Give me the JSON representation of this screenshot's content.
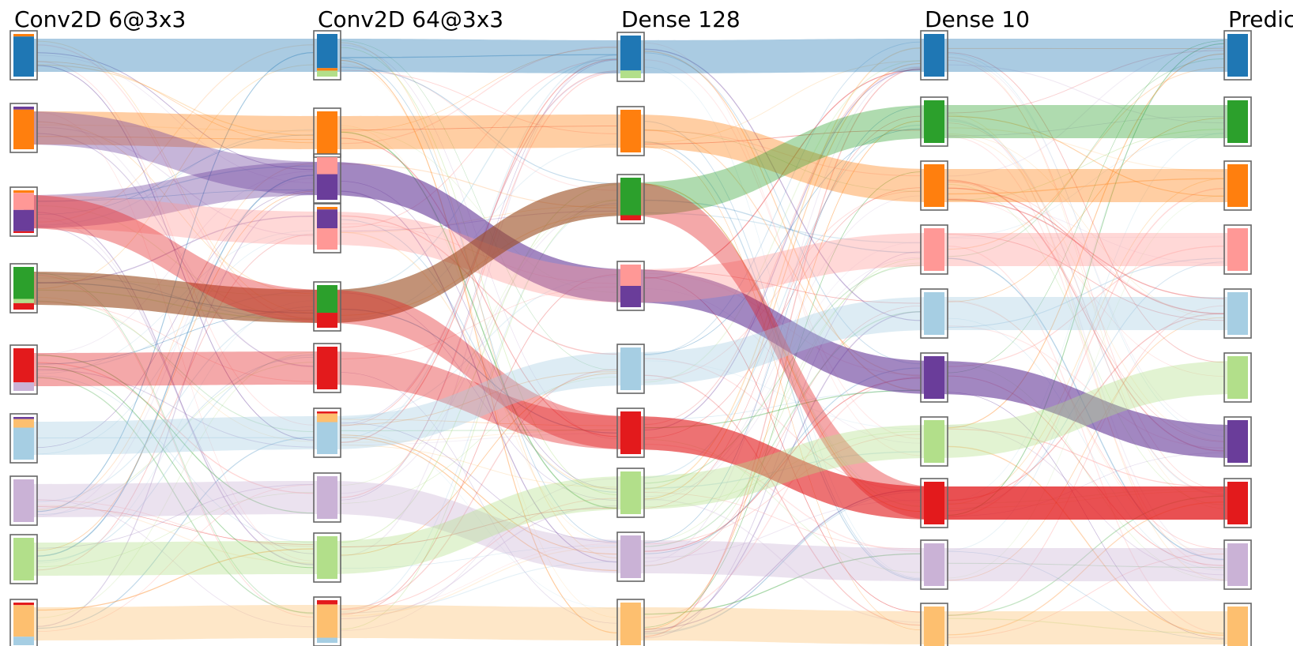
{
  "columns": [
    {
      "label": "Conv2D 6@3x3"
    },
    {
      "label": "Conv2D 64@3x3"
    },
    {
      "label": "Dense 128"
    },
    {
      "label": "Dense 10"
    },
    {
      "label": "Predic"
    }
  ],
  "classes": [
    {
      "name": "c0",
      "color": "#1f77b4",
      "light": "#aecde6"
    },
    {
      "name": "c1",
      "color": "#ff7f0e",
      "light": "#ffcc99"
    },
    {
      "name": "c2",
      "color": "#6a3d9a",
      "light": "#c5b0d5"
    },
    {
      "name": "c3",
      "color": "#ff9896",
      "light": "#fcd3d3"
    },
    {
      "name": "c4",
      "color": "#2ca02c",
      "light": "#b0dcab"
    },
    {
      "name": "c5",
      "color": "#e31a1c",
      "light": "#f4a7a8"
    },
    {
      "name": "c6",
      "color": "#a6cee3",
      "light": "#d8e8f2"
    },
    {
      "name": "c7",
      "color": "#cab2d6",
      "light": "#e7dfee"
    },
    {
      "name": "c8",
      "color": "#b2df8a",
      "light": "#dff0d0"
    },
    {
      "name": "c9",
      "color": "#fdbf6f",
      "light": "#fde3c2"
    }
  ],
  "layers": [
    {
      "nodes": [
        {
          "segments": [
            [
              "c1",
              0.06
            ],
            [
              "c0",
              0.94
            ]
          ]
        },
        {
          "segments": [
            [
              "c2",
              0.07
            ],
            [
              "c1",
              0.93
            ]
          ]
        },
        {
          "segments": [
            [
              "c1",
              0.06
            ],
            [
              "c3",
              0.4
            ],
            [
              "c2",
              0.5
            ],
            [
              "c5",
              0.04
            ]
          ]
        },
        {
          "segments": [
            [
              "c4",
              0.75
            ],
            [
              "c8",
              0.1
            ],
            [
              "c5",
              0.15
            ]
          ]
        },
        {
          "segments": [
            [
              "c5",
              0.8
            ],
            [
              "c7",
              0.2
            ]
          ]
        },
        {
          "segments": [
            [
              "c2",
              0.05
            ],
            [
              "c9",
              0.2
            ],
            [
              "c6",
              0.75
            ]
          ]
        },
        {
          "segments": [
            [
              "c7",
              1.0
            ]
          ]
        },
        {
          "segments": [
            [
              "c8",
              1.0
            ]
          ]
        },
        {
          "segments": [
            [
              "c5",
              0.06
            ],
            [
              "c9",
              0.74
            ],
            [
              "c6",
              0.2
            ]
          ]
        }
      ]
    },
    {
      "nodes": [
        {
          "segments": [
            [
              "c0",
              0.8
            ],
            [
              "c1",
              0.06
            ],
            [
              "c8",
              0.14
            ]
          ]
        },
        {
          "segments": [
            [
              "c1",
              1.0
            ]
          ]
        },
        {
          "segments": [
            [
              "c3",
              0.4
            ],
            [
              "c2",
              0.6
            ]
          ]
        },
        {
          "segments": [
            [
              "c1",
              0.06
            ],
            [
              "c2",
              0.44
            ],
            [
              "c3",
              0.5
            ]
          ]
        },
        {
          "segments": [
            [
              "c4",
              0.65
            ],
            [
              "c5",
              0.35
            ]
          ]
        },
        {
          "segments": [
            [
              "c5",
              1.0
            ]
          ]
        },
        {
          "segments": [
            [
              "c5",
              0.05
            ],
            [
              "c9",
              0.2
            ],
            [
              "c6",
              0.75
            ]
          ]
        },
        {
          "segments": [
            [
              "c7",
              1.0
            ]
          ]
        },
        {
          "segments": [
            [
              "c8",
              1.0
            ]
          ]
        },
        {
          "segments": [
            [
              "c5",
              0.1
            ],
            [
              "c9",
              0.78
            ],
            [
              "c6",
              0.12
            ]
          ]
        }
      ]
    },
    {
      "nodes": [
        {
          "segments": [
            [
              "c0",
              0.82
            ],
            [
              "c8",
              0.18
            ]
          ]
        },
        {
          "segments": [
            [
              "c1",
              1.0
            ]
          ]
        },
        {
          "segments": [
            [
              "c4",
              0.88
            ],
            [
              "c5",
              0.12
            ]
          ]
        },
        {
          "segments": [
            [
              "c3",
              0.5
            ],
            [
              "c2",
              0.5
            ]
          ]
        },
        {
          "segments": [
            [
              "c6",
              1.0
            ]
          ]
        },
        {
          "segments": [
            [
              "c5",
              1.0
            ]
          ]
        },
        {
          "segments": [
            [
              "c8",
              1.0
            ]
          ]
        },
        {
          "segments": [
            [
              "c7",
              1.0
            ]
          ]
        },
        {
          "segments": [
            [
              "c9",
              1.0
            ]
          ]
        }
      ]
    },
    {
      "nodes": [
        {
          "segments": [
            [
              "c0",
              1.0
            ]
          ]
        },
        {
          "segments": [
            [
              "c4",
              1.0
            ]
          ]
        },
        {
          "segments": [
            [
              "c1",
              1.0
            ]
          ]
        },
        {
          "segments": [
            [
              "c3",
              1.0
            ]
          ]
        },
        {
          "segments": [
            [
              "c6",
              1.0
            ]
          ]
        },
        {
          "segments": [
            [
              "c2",
              1.0
            ]
          ]
        },
        {
          "segments": [
            [
              "c8",
              1.0
            ]
          ]
        },
        {
          "segments": [
            [
              "c5",
              1.0
            ]
          ]
        },
        {
          "segments": [
            [
              "c7",
              1.0
            ]
          ]
        },
        {
          "segments": [
            [
              "c9",
              1.0
            ]
          ]
        }
      ]
    },
    {
      "nodes": [
        {
          "segments": [
            [
              "c0",
              1.0
            ]
          ]
        },
        {
          "segments": [
            [
              "c4",
              1.0
            ]
          ]
        },
        {
          "segments": [
            [
              "c1",
              1.0
            ]
          ]
        },
        {
          "segments": [
            [
              "c3",
              1.0
            ]
          ]
        },
        {
          "segments": [
            [
              "c6",
              1.0
            ]
          ]
        },
        {
          "segments": [
            [
              "c8",
              1.0
            ]
          ]
        },
        {
          "segments": [
            [
              "c2",
              1.0
            ]
          ]
        },
        {
          "segments": [
            [
              "c5",
              1.0
            ]
          ]
        },
        {
          "segments": [
            [
              "c7",
              1.0
            ]
          ]
        },
        {
          "segments": [
            [
              "c9",
              1.0
            ]
          ]
        }
      ]
    }
  ],
  "bands": [
    {
      "cls": "c0",
      "path": [
        0,
        0,
        0,
        0,
        0
      ]
    },
    {
      "cls": "c1",
      "path": [
        1,
        1,
        1,
        2,
        2
      ]
    },
    {
      "cls": "c2",
      "path": [
        2,
        2,
        3,
        5,
        6
      ]
    },
    {
      "cls": "c2",
      "path": [
        1,
        2,
        3,
        5,
        6
      ]
    },
    {
      "cls": "c3",
      "path": [
        2,
        3,
        3,
        3,
        3
      ]
    },
    {
      "cls": "c4",
      "path": [
        3,
        4,
        2,
        1,
        1
      ]
    },
    {
      "cls": "c5",
      "path": [
        3,
        4,
        5,
        7,
        7
      ]
    },
    {
      "cls": "c5",
      "path": [
        4,
        5,
        5,
        7,
        7
      ]
    },
    {
      "cls": "c5",
      "path": [
        2,
        4,
        2,
        7,
        7
      ]
    },
    {
      "cls": "c6",
      "path": [
        5,
        6,
        4,
        4,
        4
      ]
    },
    {
      "cls": "c7",
      "path": [
        6,
        7,
        7,
        8,
        8
      ]
    },
    {
      "cls": "c8",
      "path": [
        7,
        8,
        6,
        6,
        5
      ]
    },
    {
      "cls": "c9",
      "path": [
        8,
        9,
        8,
        9,
        9
      ]
    }
  ]
}
